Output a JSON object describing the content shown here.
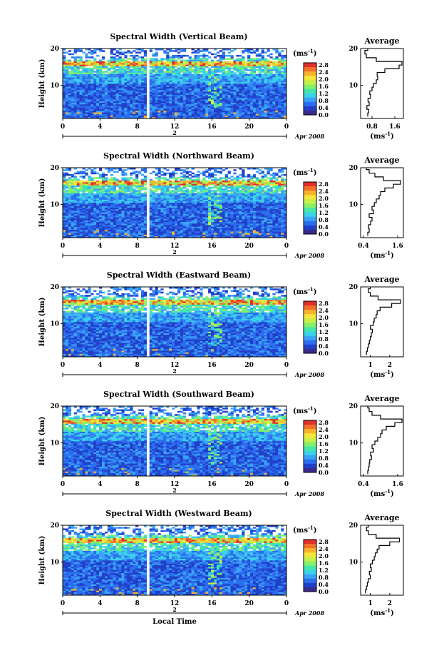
{
  "colors": {
    "scale": [
      "#3a2a8c",
      "#2140c8",
      "#2b6ef0",
      "#3aa3f7",
      "#39d3e8",
      "#45e6a9",
      "#86f06a",
      "#c6f04a",
      "#f5e63c",
      "#f8b230",
      "#f2702a",
      "#e0302a"
    ]
  },
  "chart_data": [
    {
      "type": "heatmap",
      "title": "Spectral Width (Vertical Beam)",
      "ylabel": "Height (km)",
      "ylim": [
        1,
        20
      ],
      "yticks": [
        "20",
        "10"
      ],
      "xlim": [
        0,
        24
      ],
      "xticks": [
        "0",
        "4",
        "8",
        "12",
        "16",
        "20",
        "0"
      ],
      "date_day": "2",
      "date_label": "Apr 2008",
      "colorbar": {
        "unit": "(ms",
        "unit_sup": "-1",
        "unit_close": ")",
        "ticks": [
          "2.8",
          "2.4",
          "2.0",
          "1.6",
          "1.2",
          "0.8",
          "0.4",
          "0.0"
        ]
      },
      "gap": [
        8.9,
        9.4
      ],
      "profile": {
        "title": "Average",
        "xlabel": "(ms",
        "xlabel_sup": "-1",
        "xlabel_close": ")",
        "xticks": [
          "0.8",
          "1.6"
        ],
        "xlim": [
          0.4,
          1.9
        ],
        "heights": [
          2,
          3,
          4,
          5,
          6,
          7,
          8,
          9,
          10,
          11,
          12,
          13,
          14,
          15,
          16,
          17,
          18,
          19,
          20
        ],
        "values": [
          0.65,
          0.68,
          0.62,
          0.7,
          0.66,
          0.75,
          0.72,
          0.8,
          0.85,
          0.95,
          1.0,
          0.98,
          1.25,
          1.75,
          1.85,
          0.95,
          0.6,
          0.55,
          0.65
        ]
      }
    },
    {
      "type": "heatmap",
      "title": "Spectral Width (Northward Beam)",
      "ylabel": "Height (km)",
      "ylim": [
        1,
        20
      ],
      "yticks": [
        "20",
        "10"
      ],
      "xlim": [
        0,
        24
      ],
      "xticks": [
        "0",
        "4",
        "8",
        "12",
        "16",
        "20",
        "0"
      ],
      "date_day": "2",
      "date_label": "Apr 2008",
      "colorbar": {
        "unit": "(ms",
        "unit_sup": "-1",
        "unit_close": ")",
        "ticks": [
          "2.8",
          "2.4",
          "2.0",
          "1.6",
          "1.2",
          "0.8",
          "0.4",
          "0.0"
        ]
      },
      "gap": [
        8.9,
        9.4
      ],
      "profile": {
        "title": "Average",
        "xlabel": "(ms",
        "xlabel_sup": "-1",
        "xlabel_close": ")",
        "xticks": [
          "0.4",
          "1.6"
        ],
        "xlim": [
          0.3,
          1.8
        ],
        "heights": [
          2,
          3,
          4,
          5,
          6,
          7,
          8,
          9,
          10,
          11,
          12,
          13,
          14,
          15,
          16,
          17,
          18,
          19,
          20
        ],
        "values": [
          0.55,
          0.6,
          0.58,
          0.65,
          0.7,
          0.6,
          0.75,
          0.7,
          0.78,
          0.85,
          0.95,
          1.0,
          1.15,
          1.45,
          1.7,
          1.1,
          0.8,
          0.6,
          0.5
        ]
      }
    },
    {
      "type": "heatmap",
      "title": "Spectral Width (Eastward Beam)",
      "ylabel": "Height (km)",
      "ylim": [
        1,
        20
      ],
      "yticks": [
        "20",
        "10"
      ],
      "xlim": [
        0,
        24
      ],
      "xticks": [
        "0",
        "4",
        "8",
        "12",
        "16",
        "20",
        "0"
      ],
      "date_day": "2",
      "date_label": "Apr 2008",
      "colorbar": {
        "unit": "(ms",
        "unit_sup": "-1",
        "unit_close": ")",
        "ticks": [
          "2.8",
          "2.4",
          "2.0",
          "1.6",
          "1.2",
          "0.8",
          "0.4",
          "0.0"
        ]
      },
      "gap": [
        8.9,
        9.4
      ],
      "profile": {
        "title": "Average",
        "xlabel": "(ms",
        "xlabel_sup": "-1",
        "xlabel_close": ")",
        "xticks": [
          "1",
          "2"
        ],
        "xlim": [
          0.5,
          2.7
        ],
        "heights": [
          2,
          3,
          4,
          5,
          6,
          7,
          8,
          9,
          10,
          11,
          12,
          13,
          14,
          15,
          16,
          17,
          18,
          19,
          20
        ],
        "values": [
          0.8,
          0.85,
          0.9,
          0.95,
          1.0,
          1.05,
          1.1,
          1.0,
          1.15,
          1.2,
          1.3,
          1.35,
          1.5,
          2.1,
          2.55,
          1.4,
          1.0,
          0.9,
          1.0
        ]
      }
    },
    {
      "type": "heatmap",
      "title": "Spectral Width (Southward Beam)",
      "ylabel": "Height (km)",
      "ylim": [
        1,
        20
      ],
      "yticks": [
        "20",
        "10"
      ],
      "xlim": [
        0,
        24
      ],
      "xticks": [
        "0",
        "4",
        "8",
        "12",
        "16",
        "20",
        "0"
      ],
      "date_day": "2",
      "date_label": "Apr 2008",
      "colorbar": {
        "unit": "(ms",
        "unit_sup": "-1",
        "unit_close": ")",
        "ticks": [
          "2.8",
          "2.4",
          "2.0",
          "1.6",
          "1.2",
          "0.8",
          "0.4",
          "0.0"
        ]
      },
      "gap": [
        8.9,
        9.4
      ],
      "profile": {
        "title": "Average",
        "xlabel": "(ms",
        "xlabel_sup": "-1",
        "xlabel_close": ")",
        "xticks": [
          "0.4",
          "1.6"
        ],
        "xlim": [
          0.3,
          1.8
        ],
        "heights": [
          2,
          3,
          4,
          5,
          6,
          7,
          8,
          9,
          10,
          11,
          12,
          13,
          14,
          15,
          16,
          17,
          18,
          19,
          20
        ],
        "values": [
          0.55,
          0.58,
          0.6,
          0.62,
          0.68,
          0.65,
          0.75,
          0.7,
          0.8,
          0.9,
          1.0,
          1.05,
          1.2,
          1.5,
          1.75,
          1.0,
          0.7,
          0.6,
          0.55
        ]
      }
    },
    {
      "type": "heatmap",
      "title": "Spectral Width (Westward Beam)",
      "ylabel": "Height (km)",
      "ylim": [
        1,
        20
      ],
      "yticks": [
        "20",
        "10"
      ],
      "xlim": [
        0,
        24
      ],
      "xticks": [
        "0",
        "4",
        "8",
        "12",
        "16",
        "20",
        "0"
      ],
      "date_day": "2",
      "date_label": "Apr 2008",
      "xlabel": "Local Time",
      "colorbar": {
        "unit": "(ms",
        "unit_sup": "-1",
        "unit_close": ")",
        "ticks": [
          "2.8",
          "2.4",
          "2.0",
          "1.6",
          "1.2",
          "0.8",
          "0.4",
          "0.0"
        ]
      },
      "gap": [
        8.9,
        9.4
      ],
      "profile": {
        "title": "Average",
        "xlabel": "(ms",
        "xlabel_sup": "-1",
        "xlabel_close": ")",
        "xticks": [
          "1",
          "2"
        ],
        "xlim": [
          0.5,
          2.7
        ],
        "heights": [
          2,
          3,
          4,
          5,
          6,
          7,
          8,
          9,
          10,
          11,
          12,
          13,
          14,
          15,
          16,
          17,
          18,
          19,
          20
        ],
        "values": [
          0.75,
          0.8,
          0.85,
          0.9,
          1.0,
          0.95,
          1.05,
          1.0,
          1.1,
          1.2,
          1.25,
          1.35,
          1.45,
          2.0,
          2.5,
          1.3,
          0.9,
          0.8,
          0.9
        ]
      }
    }
  ]
}
